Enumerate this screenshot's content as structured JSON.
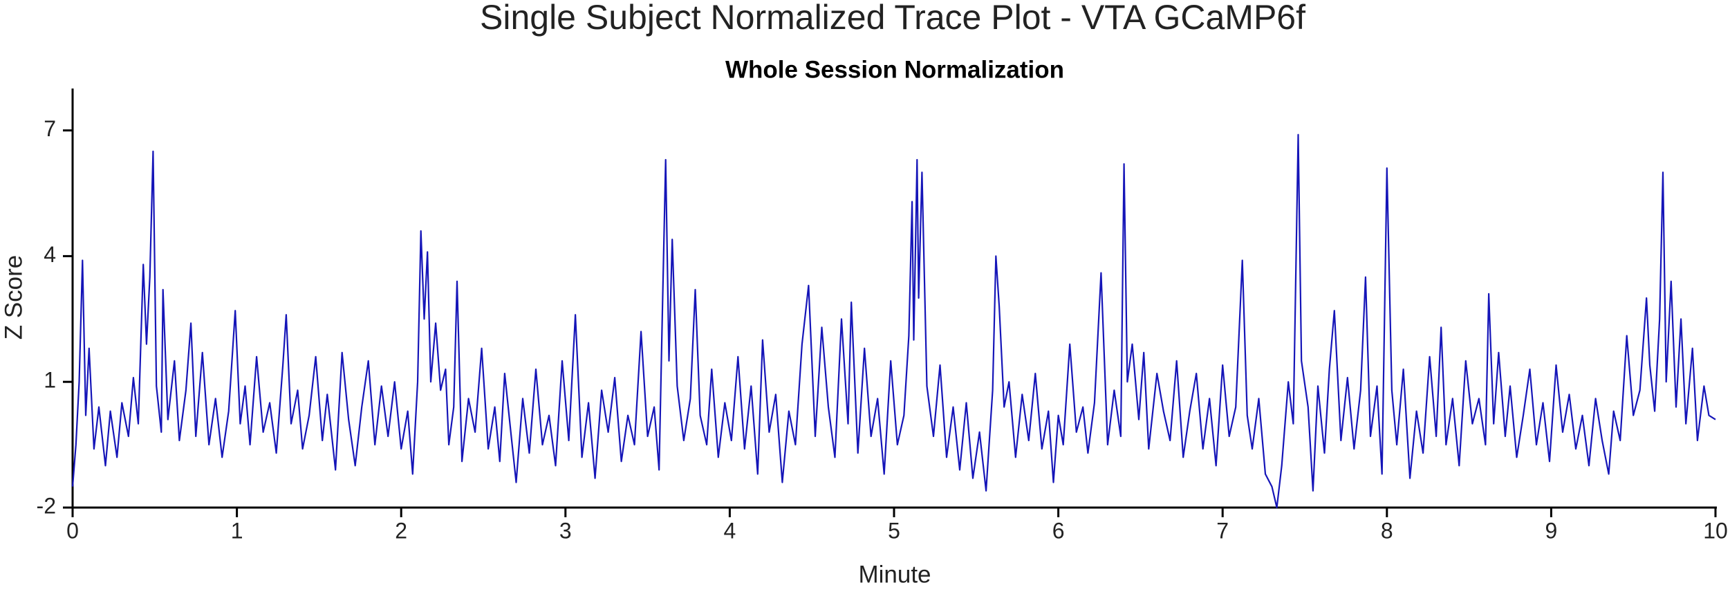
{
  "chart_data": {
    "type": "line",
    "title": "Single Subject Normalized Trace Plot - VTA GCaMP6f",
    "subtitle": "Whole Session Normalization",
    "x_label": "Minute",
    "y_label": "Z Score",
    "color": "#1515b8",
    "xlim": [
      0,
      10
    ],
    "ylim": [
      -2,
      8
    ],
    "xticks": [
      0,
      1,
      2,
      3,
      4,
      5,
      6,
      7,
      8,
      9,
      10
    ],
    "yticks": [
      -2,
      1,
      4,
      7
    ],
    "grid": false,
    "x": [
      0,
      0.02,
      0.04,
      0.06,
      0.08,
      0.1,
      0.13,
      0.16,
      0.2,
      0.23,
      0.27,
      0.3,
      0.34,
      0.37,
      0.4,
      0.43,
      0.45,
      0.47,
      0.49,
      0.51,
      0.54,
      0.55,
      0.58,
      0.62,
      0.65,
      0.69,
      0.72,
      0.75,
      0.79,
      0.83,
      0.87,
      0.91,
      0.95,
      0.99,
      1.02,
      1.05,
      1.08,
      1.12,
      1.16,
      1.2,
      1.24,
      1.28,
      1.3,
      1.33,
      1.37,
      1.4,
      1.44,
      1.48,
      1.52,
      1.55,
      1.6,
      1.64,
      1.68,
      1.72,
      1.76,
      1.8,
      1.84,
      1.88,
      1.92,
      1.96,
      2.0,
      2.04,
      2.07,
      2.1,
      2.12,
      2.14,
      2.16,
      2.18,
      2.21,
      2.24,
      2.27,
      2.29,
      2.32,
      2.34,
      2.37,
      2.41,
      2.45,
      2.49,
      2.53,
      2.57,
      2.6,
      2.63,
      2.67,
      2.7,
      2.74,
      2.78,
      2.82,
      2.86,
      2.9,
      2.94,
      2.98,
      3.02,
      3.06,
      3.1,
      3.14,
      3.18,
      3.22,
      3.26,
      3.3,
      3.34,
      3.38,
      3.42,
      3.46,
      3.5,
      3.54,
      3.57,
      3.59,
      3.61,
      3.63,
      3.65,
      3.68,
      3.72,
      3.76,
      3.79,
      3.82,
      3.86,
      3.89,
      3.93,
      3.97,
      4.01,
      4.05,
      4.09,
      4.13,
      4.17,
      4.2,
      4.24,
      4.28,
      4.32,
      4.36,
      4.4,
      4.44,
      4.48,
      4.52,
      4.56,
      4.6,
      4.64,
      4.68,
      4.72,
      4.74,
      4.78,
      4.82,
      4.86,
      4.9,
      4.94,
      4.98,
      5.02,
      5.06,
      5.09,
      5.11,
      5.12,
      5.14,
      5.15,
      5.17,
      5.2,
      5.24,
      5.28,
      5.32,
      5.36,
      5.4,
      5.44,
      5.48,
      5.52,
      5.56,
      5.6,
      5.62,
      5.64,
      5.67,
      5.7,
      5.74,
      5.78,
      5.82,
      5.86,
      5.9,
      5.94,
      5.97,
      6.0,
      6.03,
      6.07,
      6.11,
      6.15,
      6.18,
      6.22,
      6.26,
      6.3,
      6.34,
      6.38,
      6.4,
      6.42,
      6.45,
      6.49,
      6.52,
      6.55,
      6.6,
      6.64,
      6.68,
      6.72,
      6.76,
      6.8,
      6.84,
      6.88,
      6.92,
      6.96,
      7.0,
      7.04,
      7.08,
      7.12,
      7.15,
      7.18,
      7.22,
      7.26,
      7.3,
      7.33,
      7.36,
      7.4,
      7.43,
      7.46,
      7.48,
      7.52,
      7.55,
      7.58,
      7.62,
      7.65,
      7.68,
      7.72,
      7.76,
      7.8,
      7.84,
      7.87,
      7.9,
      7.94,
      7.97,
      8.0,
      8.03,
      8.06,
      8.1,
      8.14,
      8.18,
      8.22,
      8.26,
      8.3,
      8.33,
      8.36,
      8.4,
      8.44,
      8.48,
      8.52,
      8.56,
      8.6,
      8.62,
      8.65,
      8.68,
      8.72,
      8.75,
      8.79,
      8.83,
      8.87,
      8.91,
      8.95,
      8.99,
      9.03,
      9.07,
      9.11,
      9.15,
      9.19,
      9.23,
      9.27,
      9.31,
      9.35,
      9.38,
      9.42,
      9.46,
      9.5,
      9.54,
      9.58,
      9.6,
      9.63,
      9.66,
      9.68,
      9.7,
      9.73,
      9.76,
      9.79,
      9.82,
      9.86,
      9.89,
      9.93,
      9.96,
      10.0
    ],
    "values": [
      -1.5,
      -0.5,
      1,
      3.9,
      0.2,
      1.8,
      -0.6,
      0.4,
      -1,
      0.3,
      -0.8,
      0.5,
      -0.3,
      1.1,
      0,
      3.8,
      1.9,
      3.5,
      6.5,
      0.9,
      -0.2,
      3.2,
      0.1,
      1.5,
      -0.4,
      0.8,
      2.4,
      -0.3,
      1.7,
      -0.5,
      0.6,
      -0.8,
      0.3,
      2.7,
      0,
      0.9,
      -0.5,
      1.6,
      -0.2,
      0.5,
      -0.7,
      1.4,
      2.6,
      0,
      0.8,
      -0.6,
      0.2,
      1.6,
      -0.4,
      0.7,
      -1.1,
      1.7,
      0.1,
      -1,
      0.4,
      1.5,
      -0.5,
      0.9,
      -0.3,
      1,
      -0.6,
      0.3,
      -1.2,
      1,
      4.6,
      2.5,
      4.1,
      1,
      2.4,
      0.8,
      1.3,
      -0.5,
      0.4,
      3.4,
      -0.9,
      0.6,
      -0.2,
      1.8,
      -0.6,
      0.4,
      -0.9,
      1.2,
      -0.3,
      -1.4,
      0.6,
      -0.7,
      1.3,
      -0.5,
      0.2,
      -1,
      1.5,
      -0.4,
      2.6,
      -0.8,
      0.5,
      -1.3,
      0.8,
      -0.2,
      1.1,
      -0.9,
      0.2,
      -0.5,
      2.2,
      -0.3,
      0.4,
      -1.1,
      2.7,
      6.3,
      1.5,
      4.4,
      0.9,
      -0.4,
      0.6,
      3.2,
      0.2,
      -0.5,
      1.3,
      -0.8,
      0.5,
      -0.4,
      1.6,
      -0.6,
      0.9,
      -1.2,
      2,
      -0.2,
      0.7,
      -1.4,
      0.3,
      -0.5,
      1.9,
      3.3,
      -0.3,
      2.3,
      0.4,
      -0.8,
      2.5,
      0,
      2.9,
      -0.7,
      1.8,
      -0.3,
      0.6,
      -1.2,
      1.5,
      -0.5,
      0.2,
      2.1,
      5.3,
      2,
      6.3,
      3,
      6,
      0.9,
      -0.3,
      1.4,
      -0.8,
      0.4,
      -1.1,
      0.5,
      -1.3,
      -0.2,
      -1.6,
      0.8,
      4,
      2.8,
      0.4,
      1,
      -0.8,
      0.7,
      -0.4,
      1.2,
      -0.6,
      0.3,
      -1.4,
      0.2,
      -0.5,
      1.9,
      -0.2,
      0.4,
      -0.7,
      0.5,
      3.6,
      -0.5,
      0.8,
      -0.3,
      6.2,
      1,
      1.9,
      0.1,
      1.7,
      -0.6,
      1.2,
      0.3,
      -0.4,
      1.5,
      -0.8,
      0.3,
      1.2,
      -0.6,
      0.6,
      -1,
      1.4,
      -0.3,
      0.4,
      3.9,
      0.2,
      -0.6,
      0.6,
      -1.2,
      -1.5,
      -2,
      -1,
      1,
      0,
      6.9,
      1.5,
      0.4,
      -1.6,
      0.9,
      -0.7,
      1.3,
      2.7,
      -0.4,
      1.1,
      -0.6,
      0.8,
      3.5,
      -0.3,
      0.9,
      -1.2,
      6.1,
      0.8,
      -0.5,
      1.3,
      -1.3,
      0.3,
      -0.7,
      1.6,
      -0.3,
      2.3,
      -0.5,
      0.6,
      -1,
      1.5,
      0,
      0.6,
      -0.5,
      3.1,
      0,
      1.7,
      -0.3,
      0.9,
      -0.8,
      0.2,
      1.3,
      -0.5,
      0.5,
      -0.9,
      1.4,
      -0.2,
      0.7,
      -0.6,
      0.2,
      -1,
      0.6,
      -0.4,
      -1.2,
      0.3,
      -0.4,
      2.1,
      0.2,
      0.8,
      3,
      1.4,
      0.3,
      2.5,
      6,
      1,
      3.4,
      0.4,
      2.5,
      0,
      1.8,
      -0.4,
      0.9,
      0.2,
      0.1
    ]
  }
}
